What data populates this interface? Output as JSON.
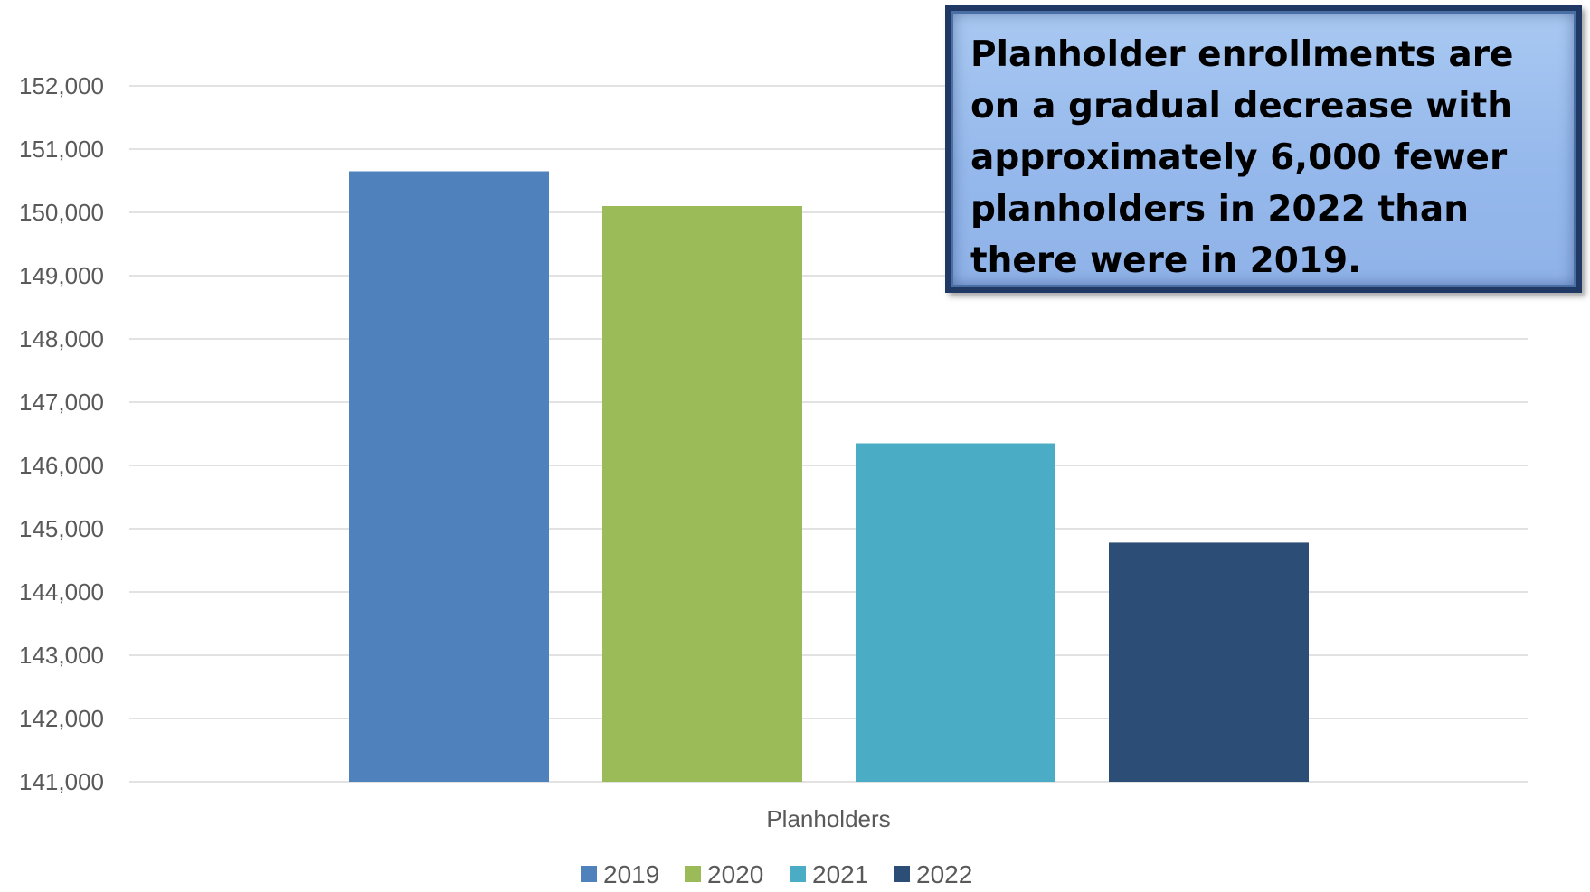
{
  "callout": {
    "text": "Planholder enrollments are on a gradual decrease with approximately 6,000 fewer planholders in 2022 than there were in 2019."
  },
  "colors": {
    "2019": "#4f81bd",
    "2020": "#9bbb59",
    "2021": "#4bacc6",
    "2022": "#2c4d75",
    "gridline": "#d9d9d9",
    "text": "#595959",
    "callout_border": "#1f3864"
  },
  "chart_data": {
    "type": "bar",
    "categories": [
      "Planholders"
    ],
    "series": [
      {
        "name": "2019",
        "values": [
          150650
        ]
      },
      {
        "name": "2020",
        "values": [
          150100
        ]
      },
      {
        "name": "2021",
        "values": [
          146350
        ]
      },
      {
        "name": "2022",
        "values": [
          144780
        ]
      }
    ],
    "title": "",
    "xlabel": "",
    "ylabel": "",
    "ylim": [
      141000,
      152000
    ],
    "yticks": [
      141000,
      142000,
      143000,
      144000,
      145000,
      146000,
      147000,
      148000,
      149000,
      150000,
      151000,
      152000
    ],
    "ytick_labels": [
      "141,000",
      "142,000",
      "143,000",
      "144,000",
      "145,000",
      "146,000",
      "147,000",
      "148,000",
      "149,000",
      "150,000",
      "151,000",
      "152,000"
    ],
    "grid": true,
    "legend": "bottom"
  }
}
